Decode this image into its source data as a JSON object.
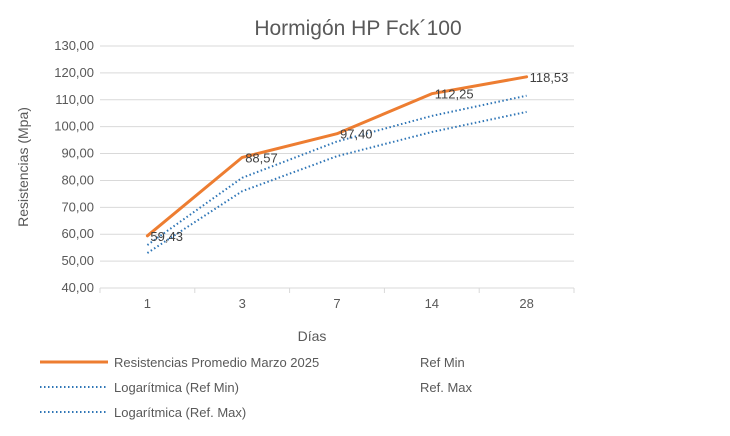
{
  "chart_data": {
    "type": "line",
    "title": "Hormigón HP Fck´100",
    "xlabel": "Días",
    "ylabel": "Resistencias (Mpa)",
    "categories": [
      "1",
      "3",
      "7",
      "14",
      "28"
    ],
    "yticks": [
      "40,00",
      "50,00",
      "60,00",
      "70,00",
      "80,00",
      "90,00",
      "100,00",
      "110,00",
      "120,00",
      "130,00"
    ],
    "ylim": [
      40,
      130
    ],
    "grid": true,
    "legend_position": "bottom",
    "series": [
      {
        "name": "Resistencias Promedio Marzo 2025",
        "values": [
          59.43,
          88.57,
          97.4,
          112.25,
          118.53
        ],
        "labels": [
          "59,43",
          "88,57",
          "97,40",
          "112,25",
          "118,53"
        ],
        "color": "#ed7d31",
        "style": "solid"
      },
      {
        "name": "Logarítmica (Ref Min)",
        "values": [
          53.0,
          76.0,
          89.0,
          98.0,
          105.5
        ],
        "color": "#2e75b6",
        "style": "dotted"
      },
      {
        "name": "Logarítmica (Ref. Max)",
        "values": [
          56.0,
          81.0,
          94.5,
          104.0,
          111.5
        ],
        "color": "#2e75b6",
        "style": "dotted"
      }
    ],
    "legend_extra": [
      "Ref Min",
      "Ref. Max"
    ]
  }
}
